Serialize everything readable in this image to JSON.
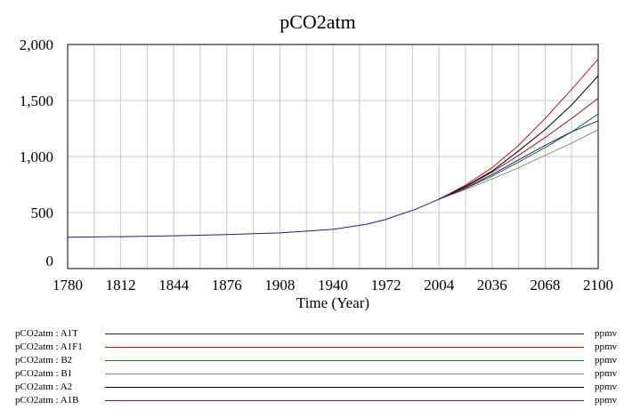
{
  "chart_data": {
    "type": "line",
    "title": "pCO2atm",
    "xlabel": "Time (Year)",
    "ylabel": "",
    "xlim": [
      1780,
      2100
    ],
    "ylim": [
      0,
      2000
    ],
    "x_ticks": [
      "1780",
      "1812",
      "1844",
      "1876",
      "1908",
      "1940",
      "1972",
      "2004",
      "2036",
      "2068",
      "2100"
    ],
    "y_ticks": [
      "0",
      "500",
      "1,000",
      "1,500",
      "2,000"
    ],
    "grid": true,
    "legend_position": "bottom",
    "series": [
      {
        "name": "pCO2atm : A1T",
        "unit": "ppmv",
        "color": "#1a1aa0",
        "x": [
          1780,
          1812,
          1844,
          1876,
          1908,
          1940,
          1960,
          1972,
          1990,
          2004,
          2020,
          2036,
          2052,
          2068,
          2084,
          2100
        ],
        "y": [
          280,
          285,
          293,
          303,
          318,
          350,
          395,
          440,
          530,
          620,
          720,
          840,
          970,
          1100,
          1220,
          1320
        ]
      },
      {
        "name": "pCO2atm : A1F1",
        "unit": "ppmv",
        "color": "#d01010",
        "x": [
          2004,
          2020,
          2036,
          2052,
          2068,
          2084,
          2100
        ],
        "y": [
          620,
          745,
          900,
          1100,
          1340,
          1600,
          1870
        ]
      },
      {
        "name": "pCO2atm : B2",
        "unit": "ppmv",
        "color": "#108010",
        "x": [
          2004,
          2020,
          2036,
          2052,
          2068,
          2084,
          2100
        ],
        "y": [
          620,
          715,
          825,
          950,
          1080,
          1220,
          1380
        ]
      },
      {
        "name": "pCO2atm : B1",
        "unit": "ppmv",
        "color": "#8a8a8a",
        "x": [
          2004,
          2020,
          2036,
          2052,
          2068,
          2084,
          2100
        ],
        "y": [
          620,
          705,
          800,
          900,
          1010,
          1120,
          1240
        ]
      },
      {
        "name": "pCO2atm : A2",
        "unit": "ppmv",
        "color": "#000000",
        "x": [
          2004,
          2020,
          2036,
          2052,
          2068,
          2084,
          2100
        ],
        "y": [
          620,
          735,
          870,
          1050,
          1240,
          1460,
          1720
        ]
      },
      {
        "name": "pCO2atm : A1B",
        "unit": "ppmv",
        "color": "#a01020",
        "x": [
          2004,
          2020,
          2036,
          2052,
          2068,
          2084,
          2100
        ],
        "y": [
          620,
          730,
          860,
          1010,
          1170,
          1340,
          1520
        ]
      }
    ]
  }
}
